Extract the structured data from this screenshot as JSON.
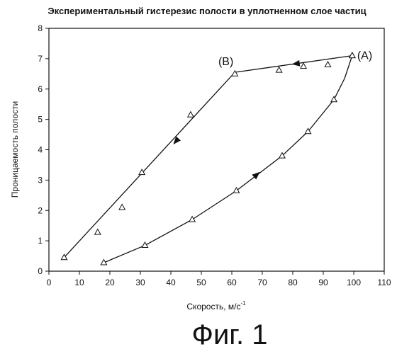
{
  "chart_data": {
    "type": "scatter",
    "title": "Экспериментальный гистерезис полости в уплотненном слое частиц",
    "xlabel_main": "Скорость, м/с",
    "xlabel_sup": "-1",
    "ylabel": "Проницаемость полости",
    "xlim": [
      0,
      110
    ],
    "ylim": [
      0,
      8
    ],
    "x_ticks": [
      "0",
      "10",
      "20",
      "30",
      "40",
      "50",
      "60",
      "70",
      "80",
      "90",
      "100",
      "110"
    ],
    "y_ticks": [
      "0",
      "1",
      "2",
      "3",
      "4",
      "5",
      "6",
      "7",
      "8"
    ],
    "grid": false,
    "legend": "none",
    "marker": "triangle",
    "series": [
      {
        "role": "rising",
        "points": [
          [
            18,
            0.28
          ],
          [
            31.5,
            0.85
          ],
          [
            47,
            1.7
          ],
          [
            61.5,
            2.65
          ],
          [
            76.5,
            3.8
          ],
          [
            85,
            4.6
          ],
          [
            93.5,
            5.65
          ],
          [
            99.5,
            7.1
          ]
        ],
        "curve": [
          [
            18,
            0.28
          ],
          [
            31.5,
            0.85
          ],
          [
            47,
            1.7
          ],
          [
            61.5,
            2.65
          ],
          [
            76.5,
            3.8
          ],
          [
            85,
            4.6
          ],
          [
            93.5,
            5.65
          ],
          [
            97,
            6.35
          ],
          [
            99.5,
            7.1
          ]
        ],
        "arrows": [
          [
            [
              65,
              2.9
            ],
            [
              69,
              3.25
            ]
          ]
        ]
      },
      {
        "role": "falling",
        "points": [
          [
            99.5,
            7.1
          ],
          [
            91.5,
            6.8
          ],
          [
            83.5,
            6.75
          ],
          [
            75.5,
            6.62
          ],
          [
            61,
            6.5
          ],
          [
            46.5,
            5.15
          ],
          [
            30.5,
            3.25
          ],
          [
            24,
            2.1
          ],
          [
            16,
            1.28
          ],
          [
            5,
            0.45
          ]
        ],
        "curve": [
          [
            99.5,
            7.1
          ],
          [
            61,
            6.55
          ],
          [
            5,
            0.45
          ]
        ],
        "arrows": [
          [
            [
              86,
              6.9
            ],
            [
              80,
              6.82
            ]
          ],
          [
            [
              44,
              4.55
            ],
            [
              41,
              4.2
            ]
          ]
        ]
      }
    ],
    "annotations": [
      {
        "text": "(A)",
        "x": 99.5,
        "y": 7.1
      },
      {
        "text": "(B)",
        "x": 61,
        "y": 6.55
      }
    ]
  },
  "caption": "Фиг. 1"
}
